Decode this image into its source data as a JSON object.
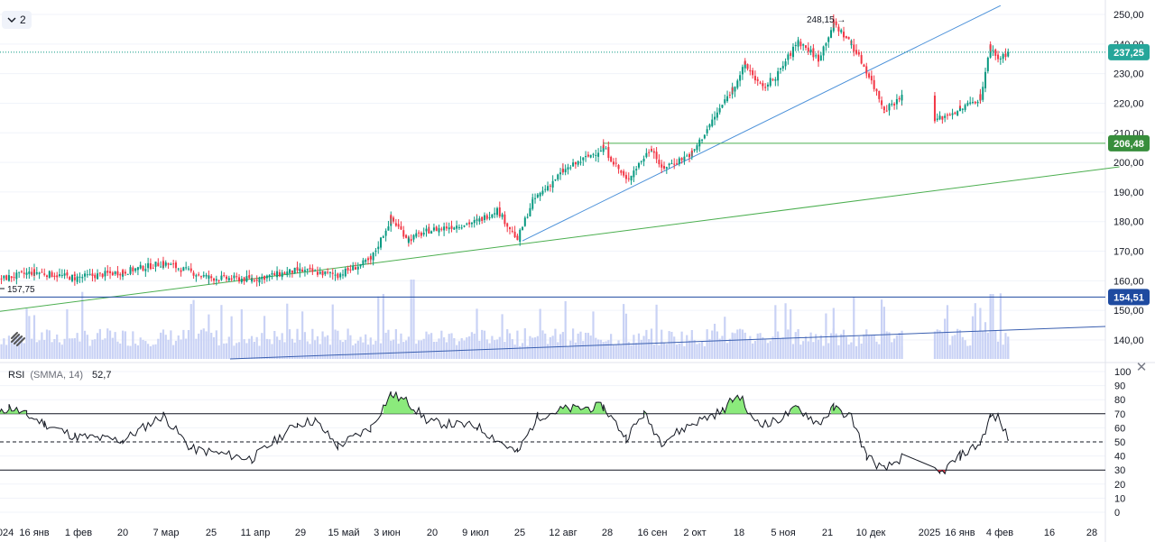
{
  "header": {
    "layout_count": "2",
    "chevron_icon": "chevron-down-icon"
  },
  "colors": {
    "up": "#089981",
    "down": "#f23645",
    "grid": "#f0f3fa",
    "volume": "#c9d2f5",
    "trend_green": "#4caf50",
    "trend_blue": "#2962ff",
    "label_green": "#388e3c",
    "label_navy": "#1e4aa0",
    "label_current": "#26a69a",
    "rsi_fill_high": "#8bea7c",
    "rsi_fill_low": "#f23645"
  },
  "price_labels": {
    "current": "237,25",
    "level_green": "206,48",
    "level_blue": "154,51"
  },
  "annotations": {
    "high": "248,15 →",
    "start": "157,75"
  },
  "rsi": {
    "name": "RSI",
    "params": "(SMMA, 14)",
    "value": "52,7"
  },
  "chart_data": [
    {
      "type": "candlestick",
      "y_axis_ticks": [
        "250,00",
        "240,00",
        "230,00",
        "220,00",
        "210,00",
        "200,00",
        "190,00",
        "180,00",
        "170,00",
        "160,00",
        "150,00",
        "140,00"
      ],
      "x_axis_ticks": [
        "2024",
        "16 янв",
        "1 фев",
        "20",
        "7 мар",
        "25",
        "11 апр",
        "29",
        "15 май",
        "3 июн",
        "20",
        "9 июл",
        "25",
        "12 авг",
        "28",
        "16 сен",
        "2 окт",
        "18",
        "5 ноя",
        "21",
        "10 дек",
        "2025",
        "16 янв",
        "4 фев",
        "16",
        "28"
      ],
      "ylim": [
        135,
        253
      ],
      "anchors": [
        {
          "date": "2024-01-02",
          "close": 160.5
        },
        {
          "date": "2024-01-16",
          "close": 163
        },
        {
          "date": "2024-02-01",
          "close": 161
        },
        {
          "date": "2024-02-20",
          "close": 163
        },
        {
          "date": "2024-03-07",
          "close": 166
        },
        {
          "date": "2024-03-25",
          "close": 161
        },
        {
          "date": "2024-04-11",
          "close": 160.5
        },
        {
          "date": "2024-04-29",
          "close": 163.5
        },
        {
          "date": "2024-05-15",
          "close": 162
        },
        {
          "date": "2024-05-28",
          "close": 167
        },
        {
          "date": "2024-06-05",
          "close": 181
        },
        {
          "date": "2024-06-12",
          "close": 174
        },
        {
          "date": "2024-06-20",
          "close": 177
        },
        {
          "date": "2024-07-09",
          "close": 180
        },
        {
          "date": "2024-07-17",
          "close": 184
        },
        {
          "date": "2024-07-25",
          "close": 174
        },
        {
          "date": "2024-07-31",
          "close": 187
        },
        {
          "date": "2024-08-12",
          "close": 197
        },
        {
          "date": "2024-08-28",
          "close": 205
        },
        {
          "date": "2024-09-06",
          "close": 194
        },
        {
          "date": "2024-09-16",
          "close": 205
        },
        {
          "date": "2024-09-20",
          "close": 198
        },
        {
          "date": "2024-10-02",
          "close": 203
        },
        {
          "date": "2024-10-18",
          "close": 225
        },
        {
          "date": "2024-10-23",
          "close": 233
        },
        {
          "date": "2024-10-30",
          "close": 225
        },
        {
          "date": "2024-11-05",
          "close": 230
        },
        {
          "date": "2024-11-13",
          "close": 241
        },
        {
          "date": "2024-11-21",
          "close": 235
        },
        {
          "date": "2024-11-27",
          "close": 247
        },
        {
          "date": "2024-12-04",
          "close": 240
        },
        {
          "date": "2024-12-10",
          "close": 231
        },
        {
          "date": "2024-12-17",
          "close": 218
        },
        {
          "date": "2024-12-24",
          "close": 222
        },
        {
          "date": "2024-12-28",
          "close": 219
        },
        {
          "date": "2025-01-03",
          "close": 213
        },
        {
          "date": "2025-01-16",
          "close": 218
        },
        {
          "date": "2025-01-24",
          "close": 222
        },
        {
          "date": "2025-01-28",
          "close": 239
        },
        {
          "date": "2025-01-31",
          "close": 235
        },
        {
          "date": "2025-02-04",
          "close": 237.25
        }
      ],
      "volume_range": [
        0,
        1
      ],
      "lines": [
        {
          "name": "green-support",
          "from": {
            "date": "2024-01-01",
            "price": 149.5
          },
          "to": {
            "date": "2025-03-20",
            "price": 198.5
          }
        },
        {
          "name": "blue-trend",
          "from": {
            "date": "2024-07-27",
            "price": 173.5
          },
          "to": {
            "date": "2025-02-01",
            "price": 253
          }
        },
        {
          "name": "green-level",
          "price": 206.48,
          "from_date": "2024-08-28"
        },
        {
          "name": "blue-level",
          "price": 154.51
        },
        {
          "name": "current-dotted",
          "price": 237.25
        }
      ]
    },
    {
      "type": "line",
      "title": "RSI",
      "y_axis_ticks": [
        "100",
        "90",
        "80",
        "70",
        "60",
        "50",
        "40",
        "30",
        "20",
        "10",
        "0"
      ],
      "ylim": [
        0,
        100
      ],
      "levels": [
        70,
        50,
        30
      ],
      "anchors": [
        {
          "date": "2024-01-02",
          "value": 69
        },
        {
          "date": "2024-01-06",
          "value": 75
        },
        {
          "date": "2024-01-13",
          "value": 69
        },
        {
          "date": "2024-01-20",
          "value": 63
        },
        {
          "date": "2024-02-01",
          "value": 54
        },
        {
          "date": "2024-02-20",
          "value": 51
        },
        {
          "date": "2024-03-07",
          "value": 69
        },
        {
          "date": "2024-03-18",
          "value": 45
        },
        {
          "date": "2024-04-11",
          "value": 38
        },
        {
          "date": "2024-04-29",
          "value": 63
        },
        {
          "date": "2024-05-06",
          "value": 65
        },
        {
          "date": "2024-05-15",
          "value": 47
        },
        {
          "date": "2024-05-28",
          "value": 60
        },
        {
          "date": "2024-06-05",
          "value": 84
        },
        {
          "date": "2024-06-12",
          "value": 78
        },
        {
          "date": "2024-06-20",
          "value": 64
        },
        {
          "date": "2024-07-09",
          "value": 61
        },
        {
          "date": "2024-07-25",
          "value": 42
        },
        {
          "date": "2024-08-02",
          "value": 68
        },
        {
          "date": "2024-08-12",
          "value": 73
        },
        {
          "date": "2024-08-28",
          "value": 75
        },
        {
          "date": "2024-09-06",
          "value": 53
        },
        {
          "date": "2024-09-13",
          "value": 70
        },
        {
          "date": "2024-09-20",
          "value": 50
        },
        {
          "date": "2024-10-02",
          "value": 63
        },
        {
          "date": "2024-10-14",
          "value": 72
        },
        {
          "date": "2024-10-18",
          "value": 80
        },
        {
          "date": "2024-10-21",
          "value": 83
        },
        {
          "date": "2024-10-25",
          "value": 68
        },
        {
          "date": "2024-11-01",
          "value": 62
        },
        {
          "date": "2024-11-13",
          "value": 74
        },
        {
          "date": "2024-11-21",
          "value": 63
        },
        {
          "date": "2024-11-27",
          "value": 74
        },
        {
          "date": "2024-12-04",
          "value": 68
        },
        {
          "date": "2024-12-10",
          "value": 40
        },
        {
          "date": "2024-12-17",
          "value": 30
        },
        {
          "date": "2024-12-24",
          "value": 39
        },
        {
          "date": "2025-01-03",
          "value": 30
        },
        {
          "date": "2025-01-08",
          "value": 27
        },
        {
          "date": "2025-01-16",
          "value": 40
        },
        {
          "date": "2025-01-24",
          "value": 49
        },
        {
          "date": "2025-01-28",
          "value": 68
        },
        {
          "date": "2025-01-31",
          "value": 67
        },
        {
          "date": "2025-02-04",
          "value": 52.7
        }
      ]
    }
  ]
}
